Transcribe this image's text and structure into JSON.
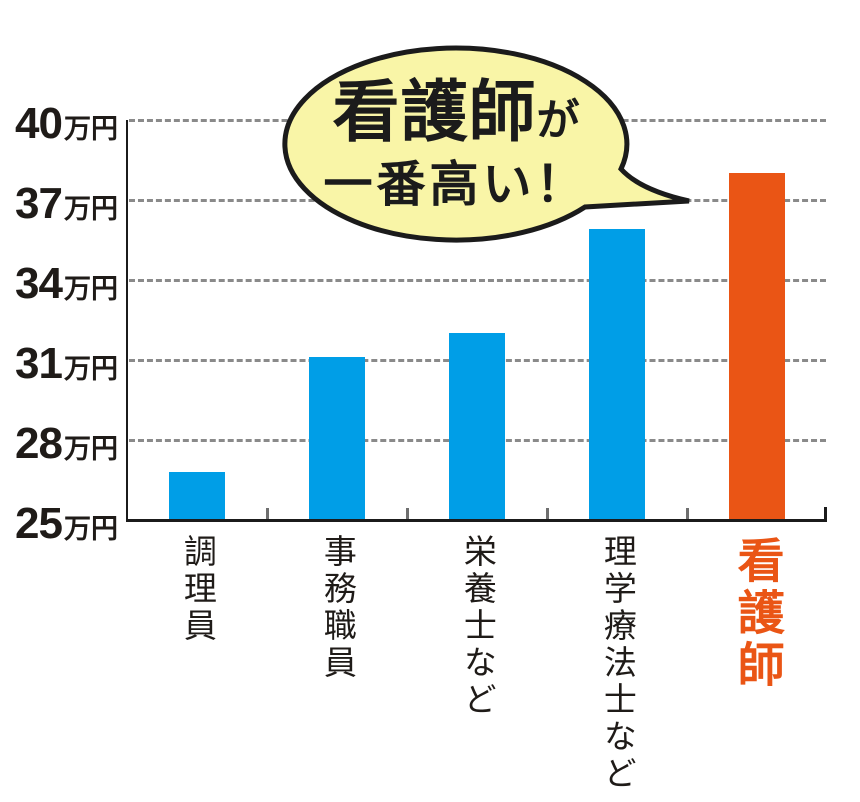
{
  "colors": {
    "bar_blue": "#009EE7",
    "bar_orange": "#EA5515",
    "bubble_fill": "#F9F5A7",
    "bubble_outline": "#1b1b1b",
    "grid_gray": "#8a8a8a",
    "axis_black": "#1b1b1b",
    "text_black": "#1f1b18"
  },
  "chart_data": {
    "type": "bar",
    "title": "",
    "categories": [
      "調理員",
      "事務職員",
      "栄養士など",
      "理学療法士など",
      "看護師"
    ],
    "values": [
      26.8,
      31.1,
      32.0,
      35.9,
      38.0
    ],
    "unit": "万円",
    "ylim": [
      25,
      40
    ],
    "yticks": [
      25,
      28,
      31,
      34,
      37,
      40
    ],
    "ytick_suffix": "万円",
    "grid": "horizontal-dashed",
    "legend": "none",
    "highlight_index": 4,
    "series_colors": [
      "#009EE7",
      "#009EE7",
      "#009EE7",
      "#009EE7",
      "#EA5515"
    ]
  },
  "annotation": {
    "line1_main": "看護師",
    "line1_suffix": "が",
    "line2": "一番高い！"
  }
}
